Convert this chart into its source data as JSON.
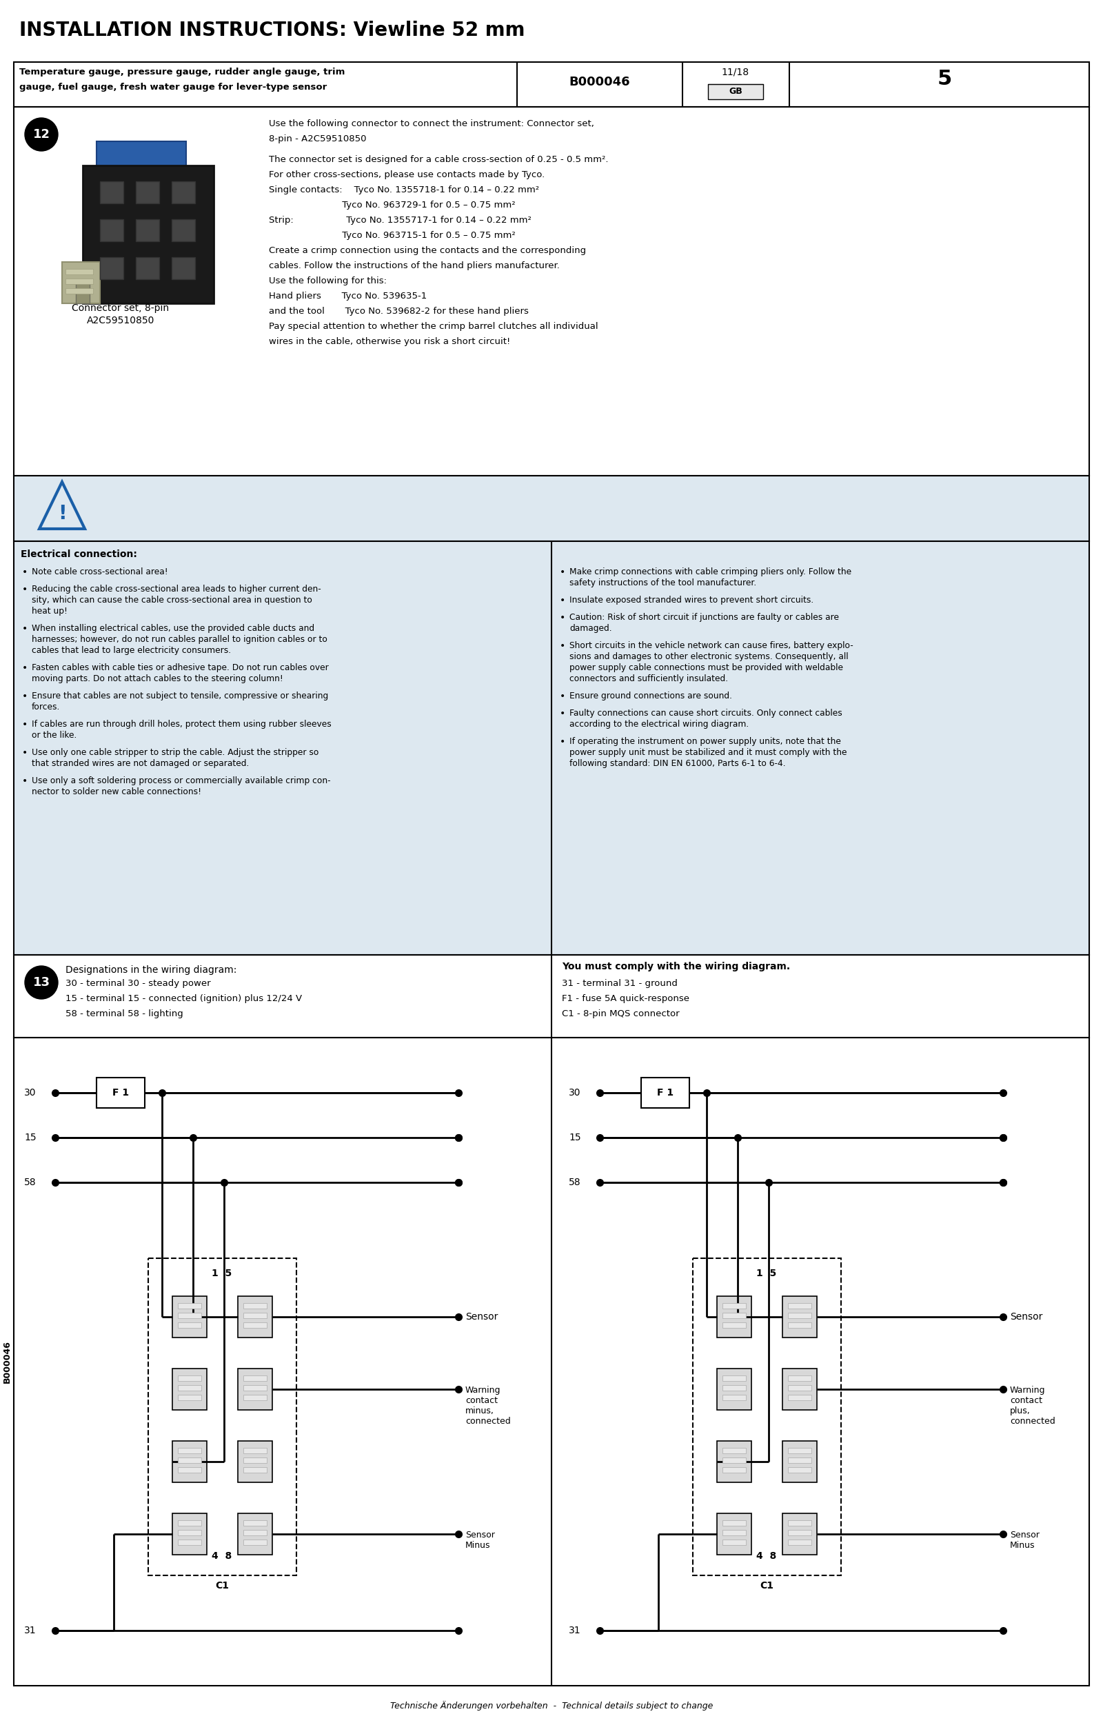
{
  "title": "INSTALLATION INSTRUCTIONS: Viewline 52 mm",
  "header_left": "Temperature gauge, pressure gauge, rudder angle gauge, trim\ngauge, fuel gauge, fresh water gauge for lever-type sensor",
  "header_doc": "B000046",
  "header_date": "11/18",
  "header_page": "5",
  "connector_text_lines": [
    "Use the following connector to connect the instrument: Connector set,",
    "8-pin - A2C59510850",
    "",
    "The connector set is designed for a cable cross-section of 0.25 - 0.5 mm².",
    "For other cross-sections, please use contacts made by Tyco.",
    "Single contacts:    Tyco No. 1355718-1 for 0.14 – 0.22 mm²",
    "                         Tyco No. 963729-1 for 0.5 – 0.75 mm²",
    "Strip:                  Tyco No. 1355717-1 for 0.14 – 0.22 mm²",
    "                         Tyco No. 963715-1 for 0.5 – 0.75 mm²",
    "Create a crimp connection using the contacts and the corresponding",
    "cables. Follow the instructions of the hand pliers manufacturer.",
    "Use the following for this:",
    "Hand pliers       Tyco No. 539635-1",
    "and the tool       Tyco No. 539682-2 for these hand pliers",
    "Pay special attention to whether the crimp barrel clutches all individual",
    "wires in the cable, otherwise you risk a short circuit!"
  ],
  "connector_label1": "Connector set, 8-pin",
  "connector_label2": "A2C59510850",
  "warning_title": "Electrical connection:",
  "bullets_left": [
    "Note cable cross-sectional area!",
    "Reducing the cable cross-sectional area leads to higher current den-\nsity, which can cause the cable cross-sectional area in question to\nheat up!",
    "When installing electrical cables, use the provided cable ducts and\nharnesses; however, do not run cables parallel to ignition cables or to\ncables that lead to large electricity consumers.",
    "Fasten cables with cable ties or adhesive tape. Do not run cables over\nmoving parts. Do not attach cables to the steering column!",
    "Ensure that cables are not subject to tensile, compressive or shearing\nforces.",
    "If cables are run through drill holes, protect them using rubber sleeves\nor the like.",
    "Use only one cable stripper to strip the cable. Adjust the stripper so\nthat stranded wires are not damaged or separated.",
    "Use only a soft soldering process or commercially available crimp con-\nnector to solder new cable connections!"
  ],
  "bullets_right": [
    "Make crimp connections with cable crimping pliers only. Follow the\nsafety instructions of the tool manufacturer.",
    "Insulate exposed stranded wires to prevent short circuits.",
    "Caution: Risk of short circuit if junctions are faulty or cables are\ndamaged.",
    "Short circuits in the vehicle network can cause fires, battery explo-\nsions and damages to other electronic systems. Consequently, all\npower supply cable connections must be provided with weldable\nconnectors and sufficiently insulated.",
    "Ensure ground connections are sound.",
    "Faulty connections can cause short circuits. Only connect cables\naccording to the electrical wiring diagram.",
    "If operating the instrument on power supply units, note that the\npower supply unit must be stabilized and it must comply with the\nfollowing standard: DIN EN 61000, Parts 6-1 to 6-4."
  ],
  "sec13_left_title": "Designations in the wiring diagram:",
  "sec13_left_lines": [
    "30 - terminal 30 - steady power",
    "15 - terminal 15 - connected (ignition) plus 12/24 V",
    "58 - terminal 58 - lighting"
  ],
  "sec13_right_title": "You must comply with the wiring diagram.",
  "sec13_right_lines": [
    "31 - terminal 31 - ground",
    "F1 - fuse 5A quick-response",
    "C1 - 8-pin MQS connector"
  ],
  "footer": "Technische Änderungen vorbehalten  -  Technical details subject to change",
  "doc_id": "B000046",
  "bg": "#ffffff",
  "light_blue": "#dde8f0",
  "blue": "#1a5fa8",
  "black": "#000000",
  "gray": "#cccccc"
}
